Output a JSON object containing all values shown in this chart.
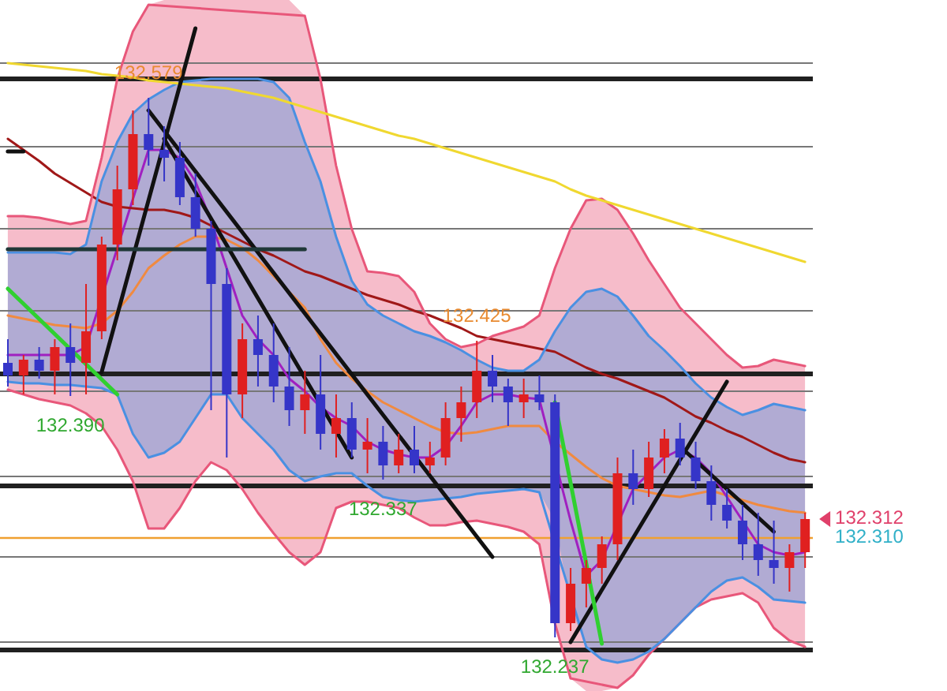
{
  "chart_data": {
    "type": "candlestick",
    "categories": [
      null,
      null,
      null,
      null,
      null,
      null,
      null,
      null,
      null,
      null,
      null,
      null,
      null,
      null,
      null,
      null,
      null,
      null,
      null,
      null,
      null,
      null,
      null,
      null,
      null,
      null,
      null,
      null,
      null,
      null,
      null,
      null,
      null,
      null,
      null,
      null,
      null,
      null,
      null,
      null,
      null,
      null,
      null,
      null,
      null,
      null,
      null,
      null,
      null,
      null,
      null,
      null
    ],
    "ohlc": [
      [
        132.411,
        132.426,
        132.396,
        132.403
      ],
      [
        132.403,
        132.416,
        132.391,
        132.413
      ],
      [
        132.413,
        132.421,
        132.401,
        132.406
      ],
      [
        132.406,
        132.426,
        132.391,
        132.421
      ],
      [
        132.421,
        132.436,
        132.39,
        132.411
      ],
      [
        132.411,
        132.461,
        132.391,
        132.431
      ],
      [
        132.431,
        132.491,
        132.426,
        132.486
      ],
      [
        132.486,
        132.536,
        132.476,
        132.521
      ],
      [
        132.521,
        132.571,
        132.511,
        132.556
      ],
      [
        132.556,
        132.579,
        132.536,
        132.546
      ],
      [
        132.546,
        132.561,
        132.526,
        132.541
      ],
      [
        132.541,
        132.551,
        132.511,
        132.516
      ],
      [
        132.516,
        132.531,
        132.491,
        132.496
      ],
      [
        132.496,
        132.501,
        132.381,
        132.461
      ],
      [
        132.461,
        132.471,
        132.351,
        132.391
      ],
      [
        132.391,
        132.436,
        132.376,
        132.426
      ],
      [
        132.426,
        132.441,
        132.396,
        132.416
      ],
      [
        132.416,
        132.436,
        132.386,
        132.396
      ],
      [
        132.396,
        132.421,
        132.371,
        132.381
      ],
      [
        132.381,
        132.406,
        132.366,
        132.391
      ],
      [
        132.391,
        132.416,
        132.356,
        132.366
      ],
      [
        132.366,
        132.391,
        132.351,
        132.376
      ],
      [
        132.376,
        132.386,
        132.351,
        132.356
      ],
      [
        132.356,
        132.376,
        132.341,
        132.361
      ],
      [
        132.361,
        132.371,
        132.337,
        132.346
      ],
      [
        132.346,
        132.366,
        132.341,
        132.356
      ],
      [
        132.356,
        132.371,
        132.341,
        132.346
      ],
      [
        132.346,
        132.361,
        132.341,
        132.351
      ],
      [
        132.351,
        132.386,
        132.346,
        132.376
      ],
      [
        132.376,
        132.396,
        132.361,
        132.386
      ],
      [
        132.386,
        132.425,
        132.376,
        132.406
      ],
      [
        132.406,
        132.416,
        132.386,
        132.396
      ],
      [
        132.396,
        132.401,
        132.371,
        132.386
      ],
      [
        132.386,
        132.401,
        132.376,
        132.391
      ],
      [
        132.391,
        132.403,
        132.381,
        132.386
      ],
      [
        132.386,
        132.391,
        132.237,
        132.246
      ],
      [
        132.246,
        132.281,
        132.241,
        132.271
      ],
      [
        132.271,
        132.286,
        132.256,
        132.281
      ],
      [
        132.281,
        132.301,
        132.271,
        132.296
      ],
      [
        132.296,
        132.351,
        132.286,
        132.341
      ],
      [
        132.341,
        132.356,
        132.321,
        132.331
      ],
      [
        132.331,
        132.361,
        132.326,
        132.351
      ],
      [
        132.351,
        132.369,
        132.341,
        132.363
      ],
      [
        132.363,
        132.373,
        132.346,
        132.351
      ],
      [
        132.351,
        132.361,
        132.331,
        132.336
      ],
      [
        132.336,
        132.346,
        132.311,
        132.321
      ],
      [
        132.321,
        132.331,
        132.306,
        132.311
      ],
      [
        132.311,
        132.321,
        132.286,
        132.296
      ],
      [
        132.296,
        132.316,
        132.276,
        132.286
      ],
      [
        132.286,
        132.311,
        132.271,
        132.281
      ],
      [
        132.281,
        132.296,
        132.266,
        132.291
      ],
      [
        132.291,
        132.316,
        132.281,
        132.312
      ]
    ],
    "colors": [
      "#3535c8",
      "#e02020",
      "#3535c8",
      "#e02020",
      "#3535c8",
      "#e02020",
      "#e02020",
      "#e02020",
      "#e02020",
      "#3535c8",
      "#3535c8",
      "#3535c8",
      "#3535c8",
      "#3535c8",
      "#3535c8",
      "#e02020",
      "#3535c8",
      "#3535c8",
      "#3535c8",
      "#e02020",
      "#3535c8",
      "#e02020",
      "#3535c8",
      "#e02020",
      "#3535c8",
      "#e02020",
      "#3535c8",
      "#e02020",
      "#e02020",
      "#e02020",
      "#e02020",
      "#3535c8",
      "#3535c8",
      "#e02020",
      "#3535c8",
      "#3535c8",
      "#e02020",
      "#e02020",
      "#e02020",
      "#e02020",
      "#3535c8",
      "#e02020",
      "#e02020",
      "#3535c8",
      "#3535c8",
      "#3535c8",
      "#3535c8",
      "#3535c8",
      "#3535c8",
      "#3535c8",
      "#e02020",
      "#e02020"
    ],
    "series": [
      {
        "type": "line",
        "color": "#f08a40",
        "values": [
          132.441,
          132.439,
          132.437,
          132.435,
          132.434,
          132.433,
          132.436,
          132.444,
          132.456,
          132.471,
          132.479,
          132.486,
          132.491,
          132.491,
          132.489,
          132.484,
          132.476,
          132.466,
          132.456,
          132.446,
          132.426,
          132.411,
          132.401,
          132.393,
          132.386,
          132.381,
          132.376,
          132.371,
          132.367,
          132.366,
          132.367,
          132.369,
          132.371,
          132.371,
          132.371,
          132.361,
          132.353,
          132.345,
          132.338,
          132.333,
          132.331,
          132.329,
          132.327,
          132.326,
          132.328,
          132.33,
          132.327,
          132.324,
          132.321,
          132.319,
          132.317,
          132.316
        ],
        "lower": [
          132.394,
          132.391,
          132.388,
          132.386,
          132.384,
          132.379,
          132.371,
          132.356,
          132.336,
          132.306,
          132.306,
          132.319,
          132.336,
          132.348,
          132.343,
          132.331,
          132.316,
          132.303,
          132.291,
          132.283,
          132.291,
          132.319,
          132.323,
          132.323,
          132.321,
          132.319,
          132.313,
          132.308,
          132.308,
          132.31,
          132.311,
          132.309,
          132.307,
          132.304,
          132.296,
          132.246,
          132.211,
          132.203,
          132.203,
          132.205,
          132.213,
          132.226,
          132.236,
          132.246,
          132.256,
          132.261,
          132.263,
          132.265,
          132.259,
          132.243,
          132.235,
          132.231
        ],
        "upper": [
          132.504,
          132.504,
          132.503,
          132.501,
          132.499,
          132.501,
          132.541,
          132.591,
          132.621,
          132.638,
          132.641,
          132.641,
          132.641,
          132.641,
          132.641,
          132.641,
          132.641,
          132.641,
          132.641,
          132.631,
          132.591,
          132.536,
          132.496,
          132.469,
          132.468,
          132.466,
          132.456,
          132.436,
          132.426,
          132.421,
          132.423,
          132.428,
          132.431,
          132.434,
          132.441,
          132.471,
          132.496,
          132.514,
          132.515,
          132.508,
          132.493,
          132.476,
          132.461,
          132.446,
          132.436,
          132.426,
          132.416,
          132.408,
          132.409,
          132.413,
          132.411,
          132.409
        ]
      },
      {
        "type": "line",
        "color": "#a020c0",
        "values": [
          132.416,
          132.416,
          132.416,
          132.416,
          132.416,
          132.421,
          null,
          null,
          null,
          132.546,
          132.546,
          132.541,
          132.526,
          132.501,
          132.471,
          132.441,
          132.426,
          132.416,
          132.401,
          132.393,
          132.383,
          132.376,
          132.371,
          132.361,
          132.356,
          132.353,
          132.351,
          132.351,
          132.358,
          132.371,
          132.386,
          132.391,
          132.391,
          132.389,
          132.388,
          null,
          132.311,
          132.276,
          132.286,
          null,
          132.331,
          132.341,
          132.351,
          132.356,
          132.351,
          132.341,
          132.326,
          132.311,
          132.296,
          132.291,
          132.289,
          132.291
        ],
        "lower": [
          132.399,
          132.398,
          132.398,
          132.397,
          132.397,
          132.396,
          132.395,
          132.391,
          132.366,
          132.351,
          132.354,
          132.361,
          132.376,
          132.391,
          132.391,
          132.376,
          132.366,
          132.356,
          132.343,
          132.336,
          132.339,
          132.341,
          132.341,
          132.333,
          132.326,
          132.324,
          132.323,
          132.324,
          132.325,
          132.326,
          132.328,
          132.329,
          132.33,
          132.331,
          132.329,
          132.311,
          132.256,
          132.231,
          132.223,
          132.221,
          132.223,
          132.228,
          132.236,
          132.246,
          132.256,
          132.266,
          132.273,
          132.275,
          132.269,
          132.261,
          132.26,
          132.259
        ],
        "upper": [
          132.481,
          132.481,
          132.481,
          132.481,
          132.48,
          132.486,
          132.526,
          132.551,
          132.569,
          132.578,
          132.584,
          132.589,
          132.59,
          132.591,
          132.591,
          132.591,
          132.591,
          132.589,
          132.579,
          132.551,
          132.526,
          132.491,
          132.463,
          132.448,
          132.441,
          132.436,
          132.431,
          132.428,
          132.424,
          132.419,
          132.413,
          132.408,
          132.406,
          132.406,
          132.413,
          132.431,
          132.446,
          132.456,
          132.458,
          132.453,
          132.441,
          132.428,
          132.419,
          132.409,
          132.398,
          132.389,
          132.383,
          132.378,
          132.381,
          132.385,
          132.383,
          132.381
        ]
      },
      {
        "type": "line",
        "color": "#a01818",
        "values": [
          132.553,
          132.546,
          132.539,
          132.531,
          132.525,
          132.519,
          132.513,
          132.51,
          132.509,
          132.508,
          132.508,
          132.506,
          132.503,
          132.498,
          132.493,
          132.488,
          132.483,
          132.479,
          132.474,
          132.469,
          132.466,
          132.462,
          132.458,
          132.454,
          132.451,
          132.448,
          132.444,
          132.441,
          132.437,
          132.433,
          132.428,
          132.426,
          132.424,
          132.422,
          132.42,
          132.418,
          132.413,
          132.408,
          132.404,
          132.401,
          132.397,
          132.393,
          132.389,
          132.383,
          132.377,
          132.373,
          132.368,
          132.364,
          132.359,
          132.354,
          132.35,
          132.348
        ]
      },
      {
        "type": "line",
        "color": "#e8577a",
        "values": [
          132.504,
          132.504,
          132.503,
          132.501,
          132.499,
          132.501,
          132.541,
          132.591,
          132.621,
          132.638,
          null,
          null,
          null,
          null,
          null,
          null,
          null,
          null,
          null,
          132.631,
          132.591,
          132.536,
          132.496,
          132.469,
          132.468,
          132.466,
          132.456,
          132.436,
          132.426,
          132.421,
          132.423,
          132.428,
          132.431,
          132.434,
          132.441,
          132.471,
          132.496,
          132.514,
          132.515,
          132.508,
          132.493,
          132.476,
          132.461,
          132.446,
          132.436,
          132.426,
          132.416,
          132.408,
          132.409,
          132.413,
          132.411,
          132.409
        ]
      },
      {
        "type": "line",
        "color": "#e8577a",
        "values": [
          132.394,
          132.391,
          132.388,
          132.386,
          132.384,
          132.379,
          132.371,
          132.356,
          132.336,
          132.306,
          132.306,
          132.319,
          132.336,
          132.348,
          132.343,
          132.331,
          132.316,
          132.303,
          132.291,
          132.283,
          132.291,
          132.319,
          132.323,
          132.323,
          132.321,
          132.319,
          132.313,
          132.308,
          132.308,
          132.31,
          132.311,
          132.309,
          132.307,
          132.304,
          132.296,
          132.246,
          132.211,
          null,
          null,
          132.205,
          132.213,
          132.226,
          132.236,
          132.246,
          132.256,
          132.261,
          132.263,
          132.265,
          132.259,
          132.243,
          132.235,
          132.231
        ]
      },
      {
        "type": "line",
        "color": "#4a90e2",
        "values": [
          132.481,
          132.481,
          132.481,
          132.481,
          132.48,
          132.486,
          132.526,
          132.551,
          132.569,
          132.578,
          132.584,
          132.589,
          132.59,
          132.591,
          132.591,
          132.591,
          132.591,
          132.589,
          132.579,
          132.551,
          132.526,
          132.491,
          132.463,
          132.448,
          132.441,
          132.436,
          132.431,
          132.428,
          132.424,
          132.419,
          132.413,
          132.408,
          132.406,
          132.406,
          132.413,
          132.431,
          132.446,
          132.456,
          132.458,
          132.453,
          132.441,
          132.428,
          132.419,
          132.409,
          132.398,
          132.389,
          132.383,
          132.378,
          132.381,
          132.385,
          132.383,
          132.381
        ]
      },
      {
        "type": "line",
        "color": "#4a90e2",
        "values": [
          132.399,
          132.398,
          132.398,
          132.397,
          132.397,
          132.396,
          132.395,
          132.391,
          132.366,
          132.351,
          132.354,
          132.361,
          132.376,
          132.391,
          132.391,
          132.376,
          132.366,
          132.356,
          132.343,
          132.336,
          132.339,
          132.341,
          132.341,
          132.333,
          132.326,
          132.324,
          132.323,
          132.324,
          132.325,
          132.326,
          132.328,
          132.329,
          132.33,
          132.331,
          132.329,
          null,
          null,
          132.231,
          132.223,
          132.221,
          132.223,
          132.228,
          132.236,
          132.246,
          132.256,
          132.266,
          132.273,
          132.275,
          132.269,
          132.261,
          132.26,
          132.259
        ]
      },
      {
        "type": "line",
        "color": "#f0d830",
        "values": [
          132.601,
          132.6,
          132.599,
          132.598,
          132.597,
          132.596,
          132.594,
          132.593,
          132.592,
          132.59,
          132.589,
          132.588,
          132.587,
          132.586,
          132.585,
          132.583,
          132.581,
          132.579,
          132.576,
          132.573,
          132.57,
          132.567,
          132.564,
          132.561,
          132.558,
          132.555,
          132.553,
          132.55,
          132.547,
          132.544,
          132.541,
          132.538,
          132.535,
          132.532,
          132.529,
          132.526,
          132.521,
          132.517,
          132.514,
          132.511,
          132.508,
          132.505,
          132.502,
          132.499,
          132.496,
          132.493,
          132.49,
          132.487,
          132.484,
          132.481,
          132.478,
          132.475
        ]
      },
      {
        "type": "line",
        "color": "#111111",
        "values": [
          null,
          null,
          null,
          null,
          null,
          null,
          132.405,
          null,
          null,
          null,
          null,
          null,
          132.623,
          null,
          null,
          null,
          null,
          null,
          null,
          null,
          null,
          null,
          null,
          null,
          null,
          null,
          null,
          null,
          null,
          null,
          null,
          null,
          null,
          null,
          null,
          null,
          null,
          null,
          null,
          null,
          null,
          null,
          null,
          null,
          null,
          null,
          null,
          null,
          null,
          null,
          null,
          null
        ]
      },
      {
        "type": "line",
        "color": "#111111",
        "values": [
          null,
          null,
          null,
          null,
          null,
          null,
          null,
          null,
          null,
          132.571,
          null,
          null,
          null,
          null,
          null,
          null,
          null,
          null,
          null,
          null,
          null,
          null,
          null,
          null,
          null,
          null,
          null,
          null,
          null,
          null,
          null,
          132.288,
          null,
          null,
          null,
          null,
          null,
          null,
          null,
          null,
          null,
          null,
          null,
          null,
          null,
          null,
          null,
          null,
          null,
          null,
          null,
          null
        ]
      },
      {
        "type": "line",
        "color": "#111111",
        "values": [
          null,
          null,
          null,
          null,
          null,
          null,
          null,
          null,
          null,
          null,
          132.553,
          null,
          null,
          null,
          null,
          null,
          null,
          null,
          null,
          null,
          null,
          null,
          132.351,
          null,
          null,
          null,
          null,
          null,
          null,
          null,
          null,
          null,
          null,
          null,
          null,
          null,
          null,
          null,
          null,
          null,
          null,
          null,
          null,
          null,
          null,
          null,
          null,
          null,
          null,
          null,
          null,
          null
        ]
      },
      {
        "type": "line",
        "color": "#111111",
        "values": [
          null,
          null,
          null,
          null,
          null,
          null,
          null,
          null,
          null,
          null,
          null,
          null,
          null,
          null,
          null,
          null,
          null,
          null,
          null,
          null,
          null,
          null,
          null,
          null,
          null,
          null,
          null,
          null,
          null,
          null,
          null,
          null,
          null,
          null,
          null,
          null,
          132.234,
          null,
          null,
          null,
          null,
          null,
          null,
          null,
          null,
          null,
          132.399,
          null,
          null,
          null,
          null,
          null
        ]
      },
      {
        "type": "line",
        "color": "#111111",
        "values": [
          null,
          null,
          null,
          null,
          null,
          null,
          null,
          null,
          null,
          null,
          null,
          null,
          null,
          null,
          null,
          null,
          null,
          null,
          null,
          null,
          null,
          null,
          null,
          null,
          null,
          null,
          null,
          null,
          null,
          null,
          null,
          null,
          null,
          null,
          null,
          null,
          null,
          null,
          null,
          null,
          null,
          null,
          null,
          132.358,
          null,
          null,
          null,
          null,
          null,
          132.304,
          null,
          null
        ]
      },
      {
        "type": "line",
        "color": "#30d030",
        "values": [
          132.458,
          null,
          null,
          null,
          null,
          null,
          null,
          132.391,
          null,
          null,
          null,
          null,
          null,
          null,
          null,
          null,
          null,
          null,
          null,
          null,
          null,
          null,
          null,
          null,
          null,
          null,
          null,
          null,
          null,
          null,
          null,
          null,
          null,
          null,
          null,
          null,
          null,
          null,
          null,
          null,
          null,
          null,
          null,
          null,
          null,
          null,
          null,
          null,
          null,
          null,
          null,
          null
        ]
      },
      {
        "type": "line",
        "color": "#30d030",
        "values": [
          null,
          null,
          null,
          null,
          null,
          null,
          null,
          null,
          null,
          null,
          null,
          null,
          null,
          null,
          null,
          null,
          null,
          null,
          null,
          null,
          null,
          null,
          null,
          null,
          null,
          null,
          null,
          null,
          null,
          null,
          null,
          null,
          null,
          null,
          null,
          132.386,
          null,
          null,
          132.233,
          null,
          null,
          null,
          null,
          null,
          null,
          null,
          null,
          null,
          null,
          null,
          null,
          null
        ]
      },
      {
        "type": "line",
        "color": "#111111",
        "values": [
          132.545,
          132.545,
          null,
          null,
          null,
          null,
          null,
          null,
          null,
          null,
          null,
          null,
          null,
          null,
          null,
          null,
          null,
          null,
          null,
          null,
          null,
          null,
          null,
          null,
          null,
          null,
          null,
          null,
          null,
          null,
          null,
          null,
          null,
          null,
          null,
          null,
          null,
          null,
          null,
          null,
          null,
          null,
          null,
          null,
          null,
          null,
          null,
          null,
          null,
          null,
          null,
          null
        ]
      },
      {
        "type": "line",
        "color": "#203838",
        "values": [
          132.483,
          132.483,
          132.483,
          132.483,
          132.483,
          132.483,
          132.483,
          132.483,
          132.483,
          132.483,
          132.483,
          132.483,
          132.483,
          132.483,
          132.483,
          132.483,
          132.483,
          132.483,
          132.483,
          132.483,
          null,
          null,
          null,
          null,
          null,
          null,
          null,
          null,
          null,
          null,
          null,
          null,
          null,
          null,
          null,
          null,
          null,
          null,
          null,
          null,
          null,
          null,
          null,
          null,
          null,
          null,
          null,
          null,
          null,
          null,
          null,
          null
        ]
      }
    ],
    "ylim": [
      132.203,
      132.641
    ],
    "yticks": [
      {
        "value": 132.601,
        "label": null
      },
      {
        "value": 132.548,
        "label": null
      },
      {
        "value": 132.496,
        "label": null
      },
      {
        "value": 132.444,
        "label": null
      },
      {
        "value": 132.393,
        "label": null
      },
      {
        "value": 132.339,
        "label": null
      },
      {
        "value": 132.288,
        "label": null
      },
      {
        "value": 132.234,
        "label": null
      }
    ],
    "grid": "y",
    "tick_labels": false,
    "ref_lines": [
      {
        "axis": "y",
        "value": 132.591,
        "color": "#202020"
      },
      {
        "axis": "y",
        "value": 132.404,
        "color": "#202020"
      },
      {
        "axis": "y",
        "value": 132.333,
        "color": "#202020"
      },
      {
        "axis": "y",
        "value": 132.229,
        "color": "#202020"
      },
      {
        "axis": "y",
        "value": 132.3,
        "color": "#f0a030"
      }
    ],
    "annotations": [
      {
        "text": "132.579",
        "y": 132.579
      },
      {
        "text": "132.390",
        "y": 132.39
      },
      {
        "text": "132.337",
        "y": 132.337
      },
      {
        "text": "132.425",
        "y": 132.425
      },
      {
        "text": "132.237",
        "y": 132.237
      },
      "132.312",
      "132.310"
    ]
  }
}
